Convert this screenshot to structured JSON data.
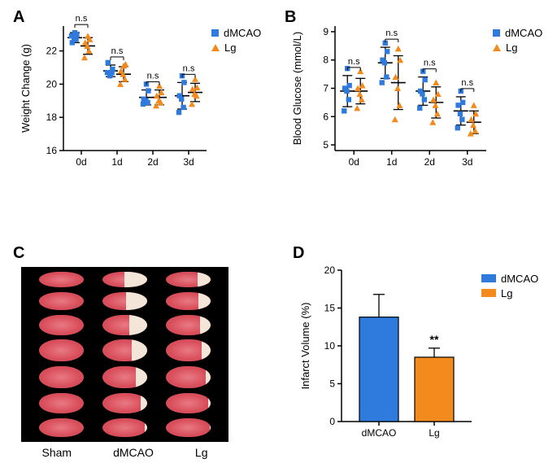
{
  "colors": {
    "dMCAO": "#2f7bdd",
    "Lg": "#f28a1d",
    "axis": "#000000",
    "error_bar": "#000000",
    "text": "#000000",
    "ttc_bg": "#000000",
    "ttc_tissue": "#d84d5a",
    "ttc_tissue_light": "#e87a84",
    "ttc_infarct": "#f3e6d8"
  },
  "panel_A": {
    "label": "A",
    "type": "dot-plot",
    "x_categories": [
      "0d",
      "1d",
      "2d",
      "3d"
    ],
    "y_label": "Weight Change (g)",
    "y_ticks": [
      16,
      18,
      20,
      22
    ],
    "y_lim": [
      16,
      23.5
    ],
    "series": {
      "dMCAO": {
        "marker": "square",
        "points": {
          "0d": [
            22.9,
            22.7,
            22.7,
            22.5,
            23.0,
            23.1
          ],
          "1d": [
            20.7,
            20.7,
            20.5,
            21.3,
            20.9,
            20.6
          ],
          "2d": [
            18.8,
            18.9,
            19.0,
            19.1,
            19.6,
            20.0
          ],
          "3d": [
            18.3,
            18.6,
            19.1,
            19.3,
            20.1,
            20.5
          ]
        },
        "mean": {
          "0d": 22.8,
          "1d": 20.8,
          "2d": 19.2,
          "3d": 19.3
        },
        "err": {
          "0d": 0.3,
          "1d": 0.35,
          "2d": 0.45,
          "3d": 0.8
        }
      },
      "Lg": {
        "marker": "triangle",
        "points": {
          "0d": [
            21.6,
            22.0,
            22.3,
            22.5,
            22.7,
            22.9
          ],
          "1d": [
            20.0,
            20.3,
            20.6,
            20.8,
            21.2,
            21.1
          ],
          "2d": [
            18.7,
            18.9,
            19.0,
            19.3,
            19.5,
            19.9
          ],
          "3d": [
            18.8,
            19.3,
            19.4,
            19.7,
            19.8,
            20.3
          ]
        },
        "mean": {
          "0d": 22.3,
          "1d": 20.6,
          "2d": 19.2,
          "3d": 19.5
        },
        "err": {
          "0d": 0.5,
          "1d": 0.45,
          "2d": 0.45,
          "3d": 0.55
        }
      }
    },
    "sig_labels": [
      "n.s",
      "n.s",
      "n.s",
      "n.s"
    ],
    "legend": [
      "dMCAO",
      "Lg"
    ]
  },
  "panel_B": {
    "label": "B",
    "type": "dot-plot",
    "x_categories": [
      "0d",
      "1d",
      "2d",
      "3d"
    ],
    "y_label": "Blood Glucose (mmol/L)",
    "y_ticks": [
      5,
      6,
      7,
      8,
      9
    ],
    "y_lim": [
      4.8,
      9.2
    ],
    "series": {
      "dMCAO": {
        "marker": "square",
        "points": {
          "0d": [
            6.2,
            6.6,
            6.9,
            7.0,
            7.1,
            7.7
          ],
          "1d": [
            7.2,
            7.4,
            7.9,
            8.0,
            8.3,
            8.6
          ],
          "2d": [
            6.3,
            6.6,
            6.8,
            6.9,
            7.3,
            7.6
          ],
          "3d": [
            5.6,
            5.9,
            6.1,
            6.4,
            6.5,
            6.9
          ]
        },
        "mean": {
          "0d": 6.9,
          "1d": 7.9,
          "2d": 6.9,
          "3d": 6.2
        },
        "err": {
          "0d": 0.55,
          "1d": 0.55,
          "2d": 0.5,
          "3d": 0.5
        }
      },
      "Lg": {
        "marker": "triangle",
        "points": {
          "0d": [
            6.3,
            6.6,
            6.8,
            7.0,
            7.1,
            7.6
          ],
          "1d": [
            5.9,
            6.4,
            7.0,
            7.4,
            8.0,
            8.4
          ],
          "2d": [
            5.8,
            6.1,
            6.4,
            6.6,
            6.8,
            7.2
          ],
          "3d": [
            5.4,
            5.5,
            5.7,
            5.9,
            6.1,
            6.4
          ]
        },
        "mean": {
          "0d": 6.9,
          "1d": 7.2,
          "2d": 6.5,
          "3d": 5.8
        },
        "err": {
          "0d": 0.45,
          "1d": 0.95,
          "2d": 0.55,
          "3d": 0.4
        }
      }
    },
    "sig_labels": [
      "n.s",
      "n.s",
      "n.s",
      "n.s"
    ],
    "legend": [
      "dMCAO",
      "Lg"
    ]
  },
  "panel_C": {
    "label": "C",
    "type": "ttc-image",
    "col_labels": [
      "Sham",
      "dMCAO",
      "Lg"
    ],
    "rows": 7,
    "slice_heights": [
      19,
      22,
      25,
      27,
      27,
      25,
      23
    ],
    "infarct": {
      "Sham": [
        0,
        0,
        0,
        0,
        0,
        0,
        0
      ],
      "dMCAO": [
        0.5,
        0.48,
        0.4,
        0.35,
        0.25,
        0.15,
        0.05
      ],
      "Lg": [
        0.3,
        0.28,
        0.25,
        0.2,
        0.12,
        0.06,
        0.02
      ]
    }
  },
  "panel_D": {
    "label": "D",
    "type": "bar",
    "y_label": "Infarct Volume (%)",
    "y_ticks": [
      0,
      5,
      10,
      15,
      20
    ],
    "y_lim": [
      0,
      20
    ],
    "bars": [
      {
        "name": "dMCAO",
        "value": 13.8,
        "err": 3.0
      },
      {
        "name": "Lg",
        "value": 8.5,
        "err": 1.2,
        "sig": "**"
      }
    ],
    "legend": [
      "dMCAO",
      "Lg"
    ]
  }
}
